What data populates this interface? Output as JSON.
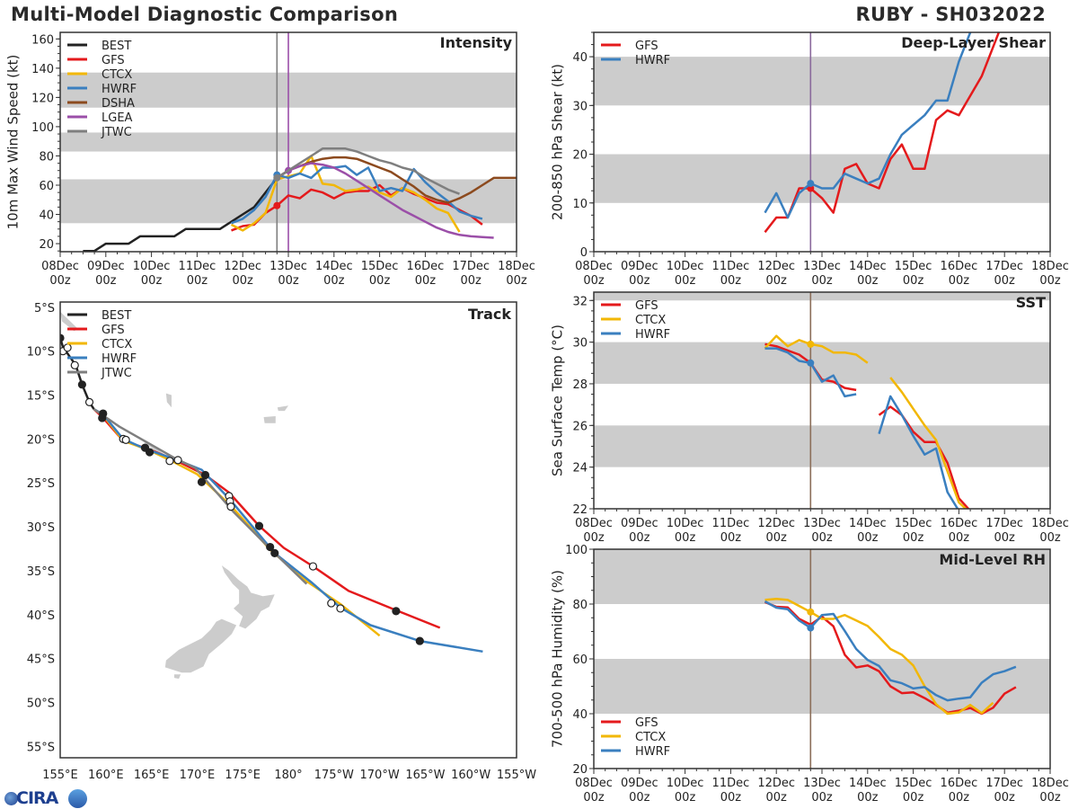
{
  "header": {
    "title": "Multi-Model Diagnostic Comparison",
    "storm": "RUBY - SH032022"
  },
  "logo": {
    "text": "CIRA"
  },
  "colors": {
    "BEST": "#222222",
    "GFS": "#e41a1c",
    "CTCX": "#f2b705",
    "HWRF": "#3a7fbf",
    "DSHA": "#8c4a1e",
    "LGEA": "#9b4fa8",
    "JTWC": "#7f7f7f",
    "band": "#cccccc"
  },
  "chart_data": [
    {
      "type": "line",
      "title": "Intensity",
      "ylabel": "10m Max Wind Speed (kt)",
      "ylim": [
        14.5,
        164.5
      ],
      "yticks": [
        "20",
        "40",
        "60",
        "80",
        "100",
        "120",
        "140",
        "160"
      ],
      "xlim": [
        "08Dec 00z",
        "18Dec 00z"
      ],
      "xticks": [
        "08Dec 00z",
        "09Dec 00z",
        "10Dec 00z",
        "11Dec 00z",
        "12Dec 00z",
        "13Dec 00z",
        "14Dec 00z",
        "15Dec 00z",
        "16Dec 00z",
        "17Dec 00z",
        "18Dec 00z"
      ],
      "shaded_bands": [
        [
          34,
          64
        ],
        [
          83,
          96
        ],
        [
          113,
          137
        ]
      ],
      "vertical_lines": [
        {
          "time": "12Dec 18z",
          "color": "#7f7f7f"
        },
        {
          "time": "13Dec 00z",
          "color": "#9b4fa8"
        }
      ],
      "legend": "top-left",
      "marker_time": "12Dec 18z",
      "series": [
        {
          "name": "BEST",
          "color": "#222222",
          "start": "08Dec 12z",
          "step_hours": 6,
          "marker": false,
          "values": [
            15,
            15,
            20,
            20,
            20,
            25,
            25,
            25,
            25,
            30,
            30,
            30,
            30,
            35,
            40,
            45,
            55,
            65,
            70
          ]
        },
        {
          "name": "GFS",
          "color": "#e41a1c",
          "start": "11Dec 18z",
          "step_hours": 6,
          "marker": true,
          "values": [
            29,
            32,
            33,
            41,
            46,
            53,
            51,
            57,
            55,
            51,
            55,
            56,
            56,
            60,
            53,
            58,
            54,
            51,
            48,
            47,
            43,
            39,
            33
          ]
        },
        {
          "name": "CTCX",
          "color": "#f2b705",
          "start": "11Dec 18z",
          "step_hours": 6,
          "marker": false,
          "values": [
            33,
            29,
            34,
            41,
            64,
            66,
            68,
            80,
            61,
            60,
            56,
            57,
            59,
            55,
            52,
            58,
            55,
            50,
            44,
            41,
            28
          ]
        },
        {
          "name": "HWRF",
          "color": "#3a7fbf",
          "start": "11Dec 18z",
          "step_hours": 6,
          "marker": true,
          "values": [
            34,
            37,
            43,
            52,
            67,
            65,
            68,
            65,
            72,
            72,
            73,
            67,
            72,
            56,
            58,
            56,
            71,
            62,
            55,
            49,
            42,
            39,
            37
          ]
        },
        {
          "name": "DSHA",
          "color": "#8c4a1e",
          "start": "12Dec 18z",
          "step_hours": 6,
          "marker": false,
          "values": [
            65,
            70,
            73,
            76,
            78,
            79,
            79,
            78,
            75,
            72,
            69,
            64,
            59,
            53,
            50,
            48,
            51,
            55,
            60,
            65,
            65,
            65
          ]
        },
        {
          "name": "LGEA",
          "color": "#9b4fa8",
          "start": "13Dec 00z",
          "step_hours": 6,
          "marker": true,
          "values": [
            70,
            73,
            75,
            74,
            72,
            68,
            63,
            58,
            53,
            48,
            43,
            39,
            35,
            31,
            28,
            26,
            25,
            24.5,
            24
          ]
        },
        {
          "name": "JTWC",
          "color": "#7f7f7f",
          "start": "12Dec 18z",
          "step_hours": 6,
          "marker": true,
          "values": [
            65,
            70,
            75,
            80,
            85,
            85,
            85,
            83,
            80,
            77,
            75,
            72,
            70,
            65,
            61,
            57,
            54
          ]
        }
      ]
    },
    {
      "type": "line",
      "title": "Deep-Layer Shear",
      "ylabel": "200-850 hPa Shear (kt)",
      "ylim": [
        0,
        45
      ],
      "yticks": [
        "0",
        "10",
        "20",
        "30",
        "40"
      ],
      "xlim": [
        "08Dec 00z",
        "18Dec 00z"
      ],
      "xticks": [
        "08Dec 00z",
        "09Dec 00z",
        "10Dec 00z",
        "11Dec 00z",
        "12Dec 00z",
        "13Dec 00z",
        "14Dec 00z",
        "15Dec 00z",
        "16Dec 00z",
        "17Dec 00z",
        "18Dec 00z"
      ],
      "shaded_bands": [
        [
          10,
          20
        ],
        [
          30,
          40
        ]
      ],
      "vertical_lines": [
        {
          "time": "12Dec 18z",
          "color": "#8a6a9c"
        }
      ],
      "legend": "top-left",
      "series": [
        {
          "name": "GFS",
          "color": "#e41a1c",
          "start": "11Dec 18z",
          "step_hours": 6,
          "marker": true,
          "values": [
            4,
            7,
            7,
            13,
            13,
            11,
            8,
            17,
            18,
            14,
            13,
            19,
            22,
            17,
            17,
            27,
            29,
            28,
            32,
            36,
            42,
            48
          ]
        },
        {
          "name": "HWRF",
          "color": "#3a7fbf",
          "start": "11Dec 18z",
          "step_hours": 6,
          "marker": true,
          "values": [
            8,
            12,
            7,
            12,
            14,
            13,
            13,
            16,
            15,
            14,
            15,
            20,
            24,
            26,
            28,
            31,
            31,
            39,
            45,
            51
          ]
        }
      ]
    },
    {
      "type": "line",
      "title": "SST",
      "ylabel": "Sea Surface Temp (°C)",
      "ylim": [
        22,
        32.4
      ],
      "yticks": [
        "22",
        "24",
        "26",
        "28",
        "30",
        "32"
      ],
      "xlim": [
        "08Dec 00z",
        "18Dec 00z"
      ],
      "xticks": [
        "08Dec 00z",
        "09Dec 00z",
        "10Dec 00z",
        "11Dec 00z",
        "12Dec 00z",
        "13Dec 00z",
        "14Dec 00z",
        "15Dec 00z",
        "16Dec 00z",
        "17Dec 00z",
        "18Dec 00z"
      ],
      "shaded_bands": [
        [
          24,
          26
        ],
        [
          28,
          30
        ],
        [
          32,
          34
        ]
      ],
      "vertical_lines": [
        {
          "time": "12Dec 18z",
          "color": "#8b6f5a"
        }
      ],
      "legend": "top-left",
      "series": [
        {
          "name": "GFS",
          "color": "#e41a1c",
          "start": "11Dec 18z",
          "step_hours": 6,
          "marker": false,
          "values": [
            29.9,
            29.8,
            29.6,
            29.4,
            29.0,
            28.2,
            28.1,
            27.8,
            27.7,
            null,
            26.5,
            26.9,
            26.5,
            25.7,
            25.2,
            25.2,
            24.2,
            22.5,
            21.9
          ]
        },
        {
          "name": "CTCX",
          "color": "#f2b705",
          "start": "11Dec 18z",
          "step_hours": 6,
          "marker": true,
          "values": [
            29.7,
            30.3,
            29.8,
            30.1,
            29.9,
            29.8,
            29.5,
            29.5,
            29.4,
            29.0,
            null,
            28.3,
            27.6,
            26.8,
            26.0,
            25.3,
            23.8,
            22.3,
            21.8
          ]
        },
        {
          "name": "HWRF",
          "color": "#3a7fbf",
          "start": "11Dec 18z",
          "step_hours": 6,
          "marker": true,
          "values": [
            29.7,
            29.7,
            29.5,
            29.1,
            29.0,
            28.1,
            28.4,
            27.4,
            27.5,
            null,
            25.6,
            27.4,
            26.5,
            25.5,
            24.6,
            24.9,
            22.8,
            21.9
          ]
        }
      ]
    },
    {
      "type": "line",
      "title": "Mid-Level RH",
      "ylabel": "700-500 hPa Humidity (%)",
      "ylim": [
        20,
        100
      ],
      "yticks": [
        "20",
        "40",
        "60",
        "80",
        "100"
      ],
      "xlim": [
        "08Dec 00z",
        "18Dec 00z"
      ],
      "xticks": [
        "08Dec 00z",
        "09Dec 00z",
        "10Dec 00z",
        "11Dec 00z",
        "12Dec 00z",
        "13Dec 00z",
        "14Dec 00z",
        "15Dec 00z",
        "16Dec 00z",
        "17Dec 00z",
        "18Dec 00z"
      ],
      "shaded_bands": [
        [
          40,
          60
        ],
        [
          80,
          100
        ]
      ],
      "vertical_lines": [
        {
          "time": "12Dec 18z",
          "color": "#8b6f5a"
        }
      ],
      "legend": "bottom-left",
      "series": [
        {
          "name": "GFS",
          "color": "#e41a1c",
          "start": "11Dec 18z",
          "step_hours": 6,
          "marker": false,
          "values": [
            80.7,
            79,
            78.8,
            74.6,
            72.5,
            75.4,
            71.9,
            61.5,
            56.9,
            57.6,
            55.5,
            50,
            47.5,
            47.8,
            45.7,
            43.2,
            40.4,
            41.1,
            42.1,
            40,
            42.2,
            47.3,
            49.7
          ]
        },
        {
          "name": "CTCX",
          "color": "#f2b705",
          "start": "11Dec 18z",
          "step_hours": 6,
          "marker": true,
          "values": [
            81.5,
            81.9,
            81.5,
            79.3,
            77.1,
            74.6,
            74.6,
            76,
            74,
            72,
            68,
            63.6,
            61.5,
            57.6,
            50,
            43.5,
            40,
            40.5,
            43.2,
            40.2,
            44
          ]
        },
        {
          "name": "HWRF",
          "color": "#3a7fbf",
          "start": "11Dec 18z",
          "step_hours": 6,
          "marker": true,
          "values": [
            81,
            78.7,
            78.1,
            74,
            71.3,
            76,
            76.4,
            70.2,
            63.6,
            59.6,
            57.4,
            52.2,
            51.1,
            49.2,
            49.7,
            46.8,
            44.9,
            45.5,
            46,
            51.3,
            54.4,
            55.5,
            57.1
          ]
        }
      ]
    },
    {
      "type": "line",
      "title": "Track",
      "xlim_lon": [
        155,
        205
      ],
      "ylim_lat": [
        -56.3,
        -4.4
      ],
      "xticks": [
        "155°E",
        "160°E",
        "165°E",
        "170°E",
        "175°E",
        "180°",
        "175°W",
        "170°W",
        "165°W",
        "160°W",
        "155°W"
      ],
      "yticks": [
        "5°S",
        "10°S",
        "15°S",
        "20°S",
        "25°S",
        "30°S",
        "35°S",
        "40°S",
        "45°S",
        "50°S",
        "55°S"
      ],
      "legend": "top-left",
      "series": [
        {
          "name": "BEST",
          "color": "#222222",
          "points": [
            [
              155.0,
              -8.5
            ],
            [
              155.3,
              -9.5
            ],
            [
              155.9,
              -10.4
            ],
            [
              156.7,
              -11.6
            ],
            [
              157.4,
              -13.8
            ],
            [
              158.2,
              -15.8
            ],
            [
              158.7,
              -16.6
            ]
          ]
        },
        {
          "name": "GFS",
          "color": "#e41a1c",
          "points": [
            [
              158.7,
              -16.6
            ],
            [
              159.7,
              -17.6
            ],
            [
              161.9,
              -20.2
            ],
            [
              164.8,
              -21.2
            ],
            [
              167.2,
              -22.2
            ],
            [
              170.9,
              -24.1
            ],
            [
              173.5,
              -26.1
            ],
            [
              176.8,
              -29.9
            ],
            [
              179.5,
              -32.4
            ],
            [
              182.7,
              -34.5
            ],
            [
              186.6,
              -37.3
            ],
            [
              191.8,
              -39.5
            ],
            [
              196.6,
              -41.5
            ]
          ]
        },
        {
          "name": "CTCX",
          "color": "#f2b705",
          "points": [
            [
              158.7,
              -16.6
            ],
            [
              159.7,
              -17.3
            ],
            [
              161.9,
              -20.2
            ],
            [
              164.8,
              -21.3
            ],
            [
              167.2,
              -22.5
            ],
            [
              170.0,
              -24.0
            ],
            [
              173.7,
              -27.6
            ],
            [
              178.0,
              -32.6
            ],
            [
              182.0,
              -36.2
            ],
            [
              185.7,
              -38.8
            ],
            [
              190.0,
              -42.4
            ]
          ]
        },
        {
          "name": "HWRF",
          "color": "#3a7fbf",
          "points": [
            [
              158.7,
              -16.6
            ],
            [
              159.7,
              -17.2
            ],
            [
              161.9,
              -20.0
            ],
            [
              164.5,
              -21.2
            ],
            [
              167.6,
              -22.3
            ],
            [
              170.5,
              -23.5
            ],
            [
              173.7,
              -27.0
            ],
            [
              178.5,
              -33.0
            ],
            [
              182.5,
              -36.3
            ],
            [
              185.7,
              -39.2
            ],
            [
              189.0,
              -41.2
            ],
            [
              194.4,
              -43.0
            ],
            [
              201.3,
              -44.2
            ]
          ]
        },
        {
          "name": "JTWC",
          "color": "#7f7f7f",
          "points": [
            [
              158.7,
              -16.6
            ],
            [
              161.5,
              -18.6
            ],
            [
              167.6,
              -22.2
            ],
            [
              169.8,
              -23.3
            ],
            [
              174.0,
              -28.3
            ],
            [
              178.0,
              -32.5
            ],
            [
              182.0,
              -36.5
            ]
          ]
        }
      ],
      "markers": [
        {
          "lon": 155.0,
          "lat": -8.5,
          "filled": true
        },
        {
          "lon": 155.3,
          "lat": -10.0,
          "filled": false
        },
        {
          "lon": 155.8,
          "lat": -9.6,
          "filled": false
        },
        {
          "lon": 156.6,
          "lat": -11.6,
          "filled": false
        },
        {
          "lon": 157.4,
          "lat": -13.8,
          "filled": true
        },
        {
          "lon": 158.2,
          "lat": -15.8,
          "filled": false
        },
        {
          "lon": 159.7,
          "lat": -17.1,
          "filled": true
        },
        {
          "lon": 159.6,
          "lat": -17.6,
          "filled": true
        },
        {
          "lon": 161.9,
          "lat": -20.0,
          "filled": false
        },
        {
          "lon": 162.2,
          "lat": -20.1,
          "filled": false
        },
        {
          "lon": 164.3,
          "lat": -21.0,
          "filled": true
        },
        {
          "lon": 164.8,
          "lat": -21.5,
          "filled": true
        },
        {
          "lon": 167.0,
          "lat": -22.5,
          "filled": false
        },
        {
          "lon": 167.9,
          "lat": -22.4,
          "filled": false
        },
        {
          "lon": 170.5,
          "lat": -24.9,
          "filled": true
        },
        {
          "lon": 170.9,
          "lat": -24.1,
          "filled": true
        },
        {
          "lon": 173.5,
          "lat": -26.5,
          "filled": false
        },
        {
          "lon": 173.6,
          "lat": -27.1,
          "filled": false
        },
        {
          "lon": 173.7,
          "lat": -27.7,
          "filled": false
        },
        {
          "lon": 176.8,
          "lat": -29.9,
          "filled": true
        },
        {
          "lon": 178.0,
          "lat": -32.3,
          "filled": true
        },
        {
          "lon": 178.5,
          "lat": -33.0,
          "filled": true
        },
        {
          "lon": 182.7,
          "lat": -34.5,
          "filled": false
        },
        {
          "lon": 184.7,
          "lat": -38.7,
          "filled": false
        },
        {
          "lon": 185.7,
          "lat": -39.3,
          "filled": false
        },
        {
          "lon": 191.8,
          "lat": -39.6,
          "filled": true
        },
        {
          "lon": 194.4,
          "lat": -43.0,
          "filled": true
        }
      ]
    }
  ]
}
